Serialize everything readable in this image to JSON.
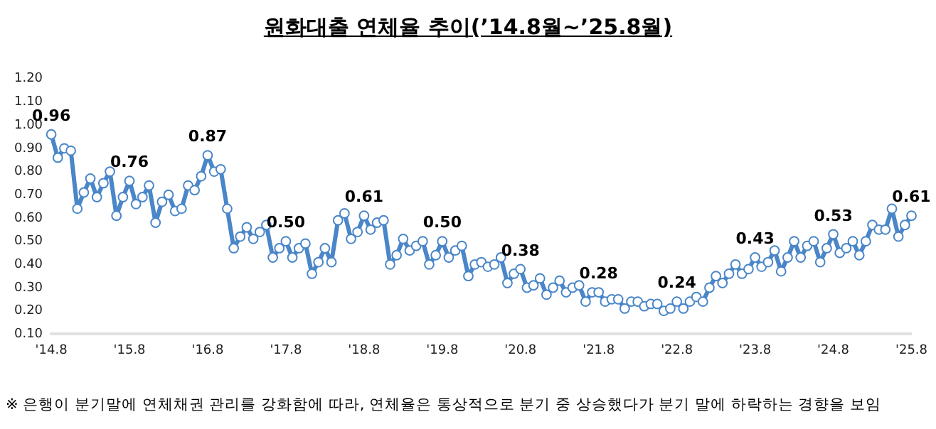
{
  "chart_data": {
    "type": "line",
    "title": "원화대출 연체율 추이(’14.8월~’25.8월)",
    "categories": [
      "'14.8",
      null,
      null,
      null,
      null,
      null,
      null,
      null,
      null,
      null,
      null,
      null,
      "'15.8",
      null,
      null,
      null,
      null,
      null,
      null,
      null,
      null,
      null,
      null,
      null,
      "'16.8",
      null,
      null,
      null,
      null,
      null,
      null,
      null,
      null,
      null,
      null,
      null,
      "'17.8",
      null,
      null,
      null,
      null,
      null,
      null,
      null,
      null,
      null,
      null,
      null,
      "'18.8",
      null,
      null,
      null,
      null,
      null,
      null,
      null,
      null,
      null,
      null,
      null,
      "'19.8",
      null,
      null,
      null,
      null,
      null,
      null,
      null,
      null,
      null,
      null,
      null,
      "'20.8",
      null,
      null,
      null,
      null,
      null,
      null,
      null,
      null,
      null,
      null,
      null,
      "'21.8",
      null,
      null,
      null,
      null,
      null,
      null,
      null,
      null,
      null,
      null,
      null,
      "'22.8",
      null,
      null,
      null,
      null,
      null,
      null,
      null,
      null,
      null,
      null,
      null,
      "'23.8",
      null,
      null,
      null,
      null,
      null,
      null,
      null,
      null,
      null,
      null,
      null,
      "'24.8",
      null,
      null,
      null,
      null,
      null,
      null,
      null,
      null,
      null,
      null,
      null,
      "'25.8"
    ],
    "series": [
      {
        "color": "#4a86c8",
        "values": [
          0.96,
          0.86,
          0.9,
          0.89,
          0.64,
          0.71,
          0.77,
          0.69,
          0.75,
          0.8,
          0.61,
          0.69,
          0.76,
          0.66,
          0.69,
          0.74,
          0.58,
          0.67,
          0.7,
          0.63,
          0.64,
          0.74,
          0.72,
          0.78,
          0.87,
          0.8,
          0.81,
          0.64,
          0.47,
          0.52,
          0.56,
          0.51,
          0.54,
          0.57,
          0.43,
          0.47,
          0.5,
          0.43,
          0.47,
          0.49,
          0.36,
          0.41,
          0.47,
          0.41,
          0.59,
          0.62,
          0.51,
          0.54,
          0.61,
          0.55,
          0.58,
          0.59,
          0.4,
          0.44,
          0.51,
          0.46,
          0.48,
          0.5,
          0.4,
          0.44,
          0.5,
          0.43,
          0.46,
          0.48,
          0.35,
          0.4,
          0.41,
          0.39,
          0.4,
          0.43,
          0.32,
          0.36,
          0.38,
          0.3,
          0.31,
          0.34,
          0.27,
          0.3,
          0.33,
          0.28,
          0.3,
          0.31,
          0.24,
          0.28,
          0.28,
          0.24,
          0.25,
          0.25,
          0.21,
          0.24,
          0.24,
          0.22,
          0.23,
          0.23,
          0.2,
          0.21,
          0.24,
          0.21,
          0.24,
          0.26,
          0.24,
          0.3,
          0.35,
          0.32,
          0.36,
          0.4,
          0.36,
          0.38,
          0.43,
          0.39,
          0.41,
          0.46,
          0.37,
          0.43,
          0.5,
          0.43,
          0.48,
          0.5,
          0.41,
          0.47,
          0.53,
          0.45,
          0.47,
          0.5,
          0.44,
          0.5,
          0.57,
          0.55,
          0.55,
          0.64,
          0.52,
          0.57,
          0.61
        ],
        "value_labels": [
          "0.96",
          null,
          null,
          null,
          null,
          null,
          null,
          null,
          null,
          null,
          null,
          null,
          "0.76",
          null,
          null,
          null,
          null,
          null,
          null,
          null,
          null,
          null,
          null,
          null,
          "0.87",
          null,
          null,
          null,
          null,
          null,
          null,
          null,
          null,
          null,
          null,
          null,
          "0.50",
          null,
          null,
          null,
          null,
          null,
          null,
          null,
          null,
          null,
          null,
          null,
          "0.61",
          null,
          null,
          null,
          null,
          null,
          null,
          null,
          null,
          null,
          null,
          null,
          "0.50",
          null,
          null,
          null,
          null,
          null,
          null,
          null,
          null,
          null,
          null,
          null,
          "0.38",
          null,
          null,
          null,
          null,
          null,
          null,
          null,
          null,
          null,
          null,
          null,
          "0.28",
          null,
          null,
          null,
          null,
          null,
          null,
          null,
          null,
          null,
          null,
          null,
          "0.24",
          null,
          null,
          null,
          null,
          null,
          null,
          null,
          null,
          null,
          null,
          null,
          "0.43",
          null,
          null,
          null,
          null,
          null,
          null,
          null,
          null,
          null,
          null,
          null,
          "0.53",
          null,
          null,
          null,
          null,
          null,
          null,
          null,
          null,
          null,
          null,
          null,
          "0.61"
        ]
      }
    ],
    "ylim": [
      0.1,
      1.2
    ],
    "yticks": [
      {
        "value": 0.1,
        "label": "0.10"
      },
      {
        "value": 0.2,
        "label": "0.20"
      },
      {
        "value": 0.3,
        "label": "0.30"
      },
      {
        "value": 0.4,
        "label": "0.40"
      },
      {
        "value": 0.5,
        "label": "0.50"
      },
      {
        "value": 0.6,
        "label": "0.60"
      },
      {
        "value": 0.7,
        "label": "0.70"
      },
      {
        "value": 0.8,
        "label": "0.80"
      },
      {
        "value": 0.9,
        "label": "0.90"
      },
      {
        "value": 1.0,
        "label": "1.00"
      },
      {
        "value": 1.1,
        "label": "1.10"
      },
      {
        "value": 1.2,
        "label": "1.20"
      }
    ],
    "grid": false,
    "legend": false,
    "marker": "circle",
    "line_style": "solid",
    "annotations": [
      "※ 은행이 분기말에 연체채권 관리를 강화함에 따라, 연체율은 통상적으로 분기 중 상승했다가 분기 말에 하락하는 경향을 보임"
    ]
  }
}
